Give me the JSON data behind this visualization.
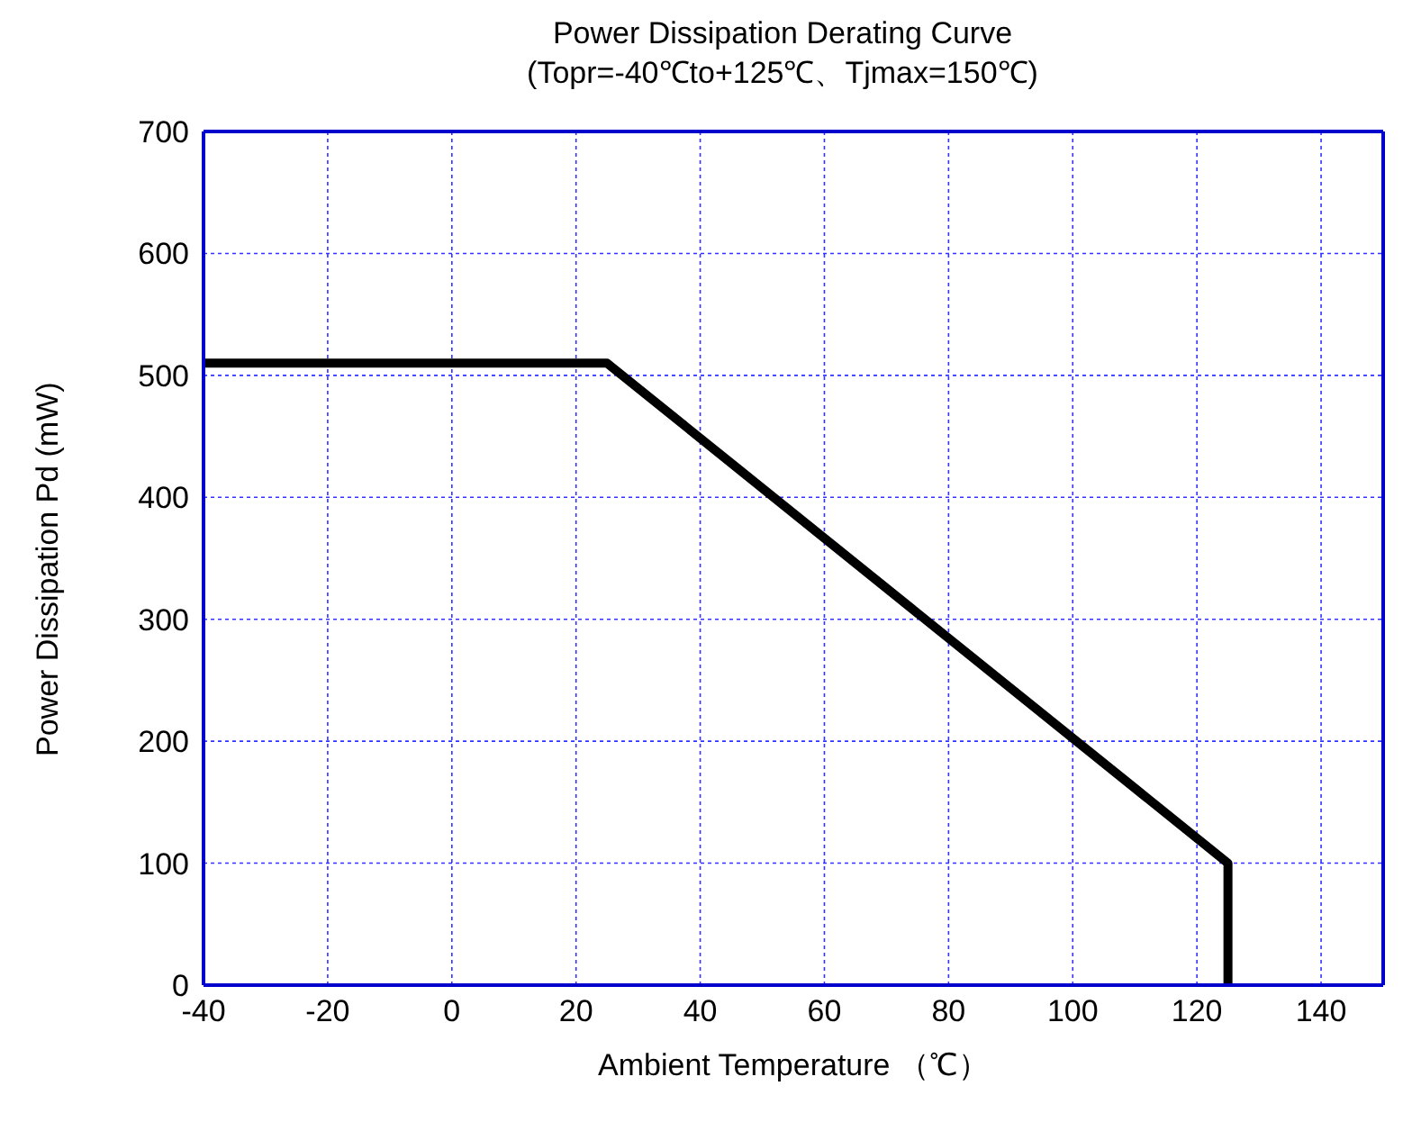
{
  "chart_data": {
    "type": "line",
    "title": "Power Dissipation Derating Curve",
    "subtitle": "(Topr=-40℃to+125℃、Tjmax=150℃)",
    "xlabel": "Ambient Temperature （℃）",
    "ylabel": "Power Dissipation Pd (mW)",
    "series": [
      {
        "color": "#000000",
        "x": [
          -40,
          25,
          125,
          125
        ],
        "values": [
          510,
          510,
          100,
          0
        ]
      }
    ],
    "xlim": [
      -40,
      150
    ],
    "xticks": [
      -40,
      -20,
      0,
      20,
      40,
      60,
      80,
      100,
      120,
      140
    ],
    "ylim": [
      0,
      700
    ],
    "yticks": [
      0,
      100,
      200,
      300,
      400,
      500,
      600,
      700
    ],
    "grid": true,
    "marker": "none",
    "line_style": "solid"
  }
}
